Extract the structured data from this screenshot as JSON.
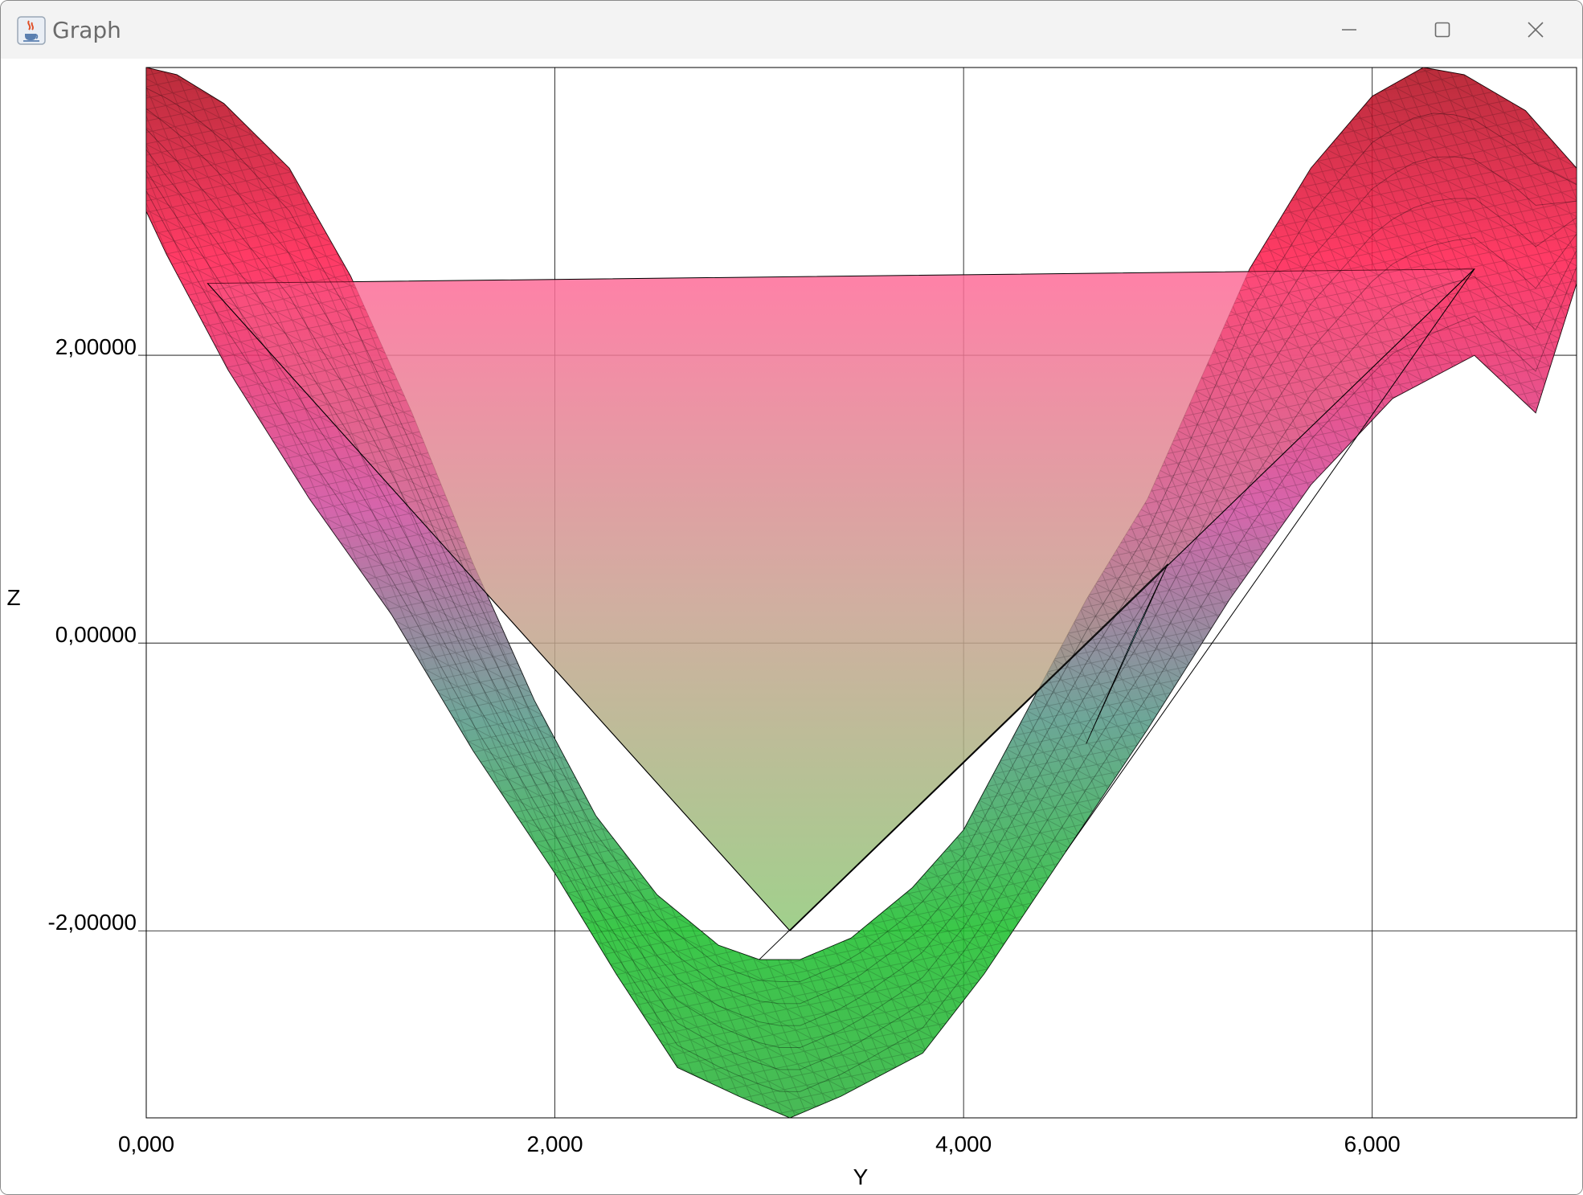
{
  "window": {
    "title": "Graph",
    "app_icon": "java-coffee-cup-icon",
    "controls": [
      "minimize-icon",
      "maximize-icon",
      "close-icon"
    ]
  },
  "chart_data": {
    "type": "area",
    "xlabel": "Y",
    "ylabel": "Z",
    "xlim": [
      0,
      7.0
    ],
    "ylim": [
      -3.3,
      4.0
    ],
    "x_ticks": [
      {
        "value": 0,
        "label": "0,000"
      },
      {
        "value": 2,
        "label": "2,000"
      },
      {
        "value": 4,
        "label": "4,000"
      },
      {
        "value": 6,
        "label": "6,000"
      }
    ],
    "y_ticks": [
      {
        "value": 2,
        "label": "2,00000"
      },
      {
        "value": 0,
        "label": "0,00000"
      },
      {
        "value": -2,
        "label": "-2,00000"
      }
    ],
    "grid": true,
    "surface": {
      "top_edge": [
        [
          0,
          4.0
        ],
        [
          0.15,
          3.95
        ],
        [
          0.38,
          3.75
        ],
        [
          0.7,
          3.3
        ],
        [
          1.0,
          2.55
        ],
        [
          1.3,
          1.6
        ],
        [
          1.6,
          0.55
        ],
        [
          1.9,
          -0.4
        ],
        [
          2.2,
          -1.2
        ],
        [
          2.5,
          -1.75
        ],
        [
          2.8,
          -2.1
        ],
        [
          3.0,
          -2.2
        ],
        [
          3.2,
          -2.2
        ],
        [
          3.45,
          -2.05
        ],
        [
          3.75,
          -1.7
        ],
        [
          4.0,
          -1.3
        ],
        [
          4.3,
          -0.5
        ],
        [
          4.6,
          0.3
        ],
        [
          4.9,
          1.0
        ],
        [
          5.15,
          1.8
        ],
        [
          5.4,
          2.6
        ],
        [
          5.7,
          3.3
        ],
        [
          6.0,
          3.8
        ],
        [
          6.25,
          4.0
        ],
        [
          6.45,
          3.95
        ],
        [
          6.75,
          3.7
        ],
        [
          7.0,
          3.3
        ]
      ],
      "bottom_edge": [
        [
          7.0,
          2.5
        ],
        [
          6.8,
          1.6
        ],
        [
          6.5,
          2.0
        ],
        [
          6.1,
          1.7
        ],
        [
          5.7,
          1.1
        ],
        [
          5.3,
          0.3
        ],
        [
          4.9,
          -0.6
        ],
        [
          4.5,
          -1.45
        ],
        [
          4.1,
          -2.3
        ],
        [
          3.8,
          -2.85
        ],
        [
          3.4,
          -3.15
        ],
        [
          3.15,
          -3.3
        ],
        [
          2.9,
          -3.15
        ],
        [
          2.6,
          -2.95
        ],
        [
          2.3,
          -2.3
        ],
        [
          2.0,
          -1.6
        ],
        [
          1.6,
          -0.75
        ],
        [
          1.2,
          0.2
        ],
        [
          0.8,
          1.0
        ],
        [
          0.4,
          1.9
        ],
        [
          0.1,
          2.7
        ],
        [
          0,
          3.0
        ]
      ],
      "fan_triangle": [
        [
          0.3,
          2.5
        ],
        [
          6.5,
          2.6
        ],
        [
          3.15,
          -2.0
        ]
      ],
      "highlight_sliver": [
        [
          4.6,
          -0.7
        ],
        [
          5.0,
          0.55
        ],
        [
          4.85,
          0.1
        ]
      ]
    }
  }
}
